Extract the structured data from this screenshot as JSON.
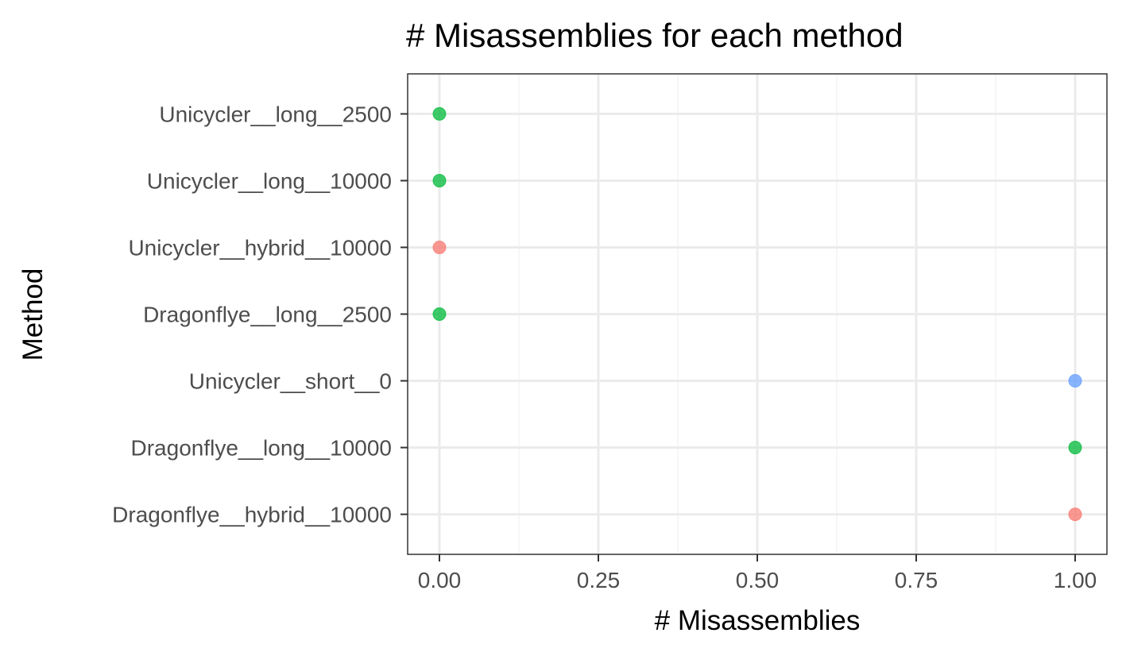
{
  "chart_data": {
    "type": "scatter",
    "title": "# Misassemblies for each method",
    "xlabel": "# Misassemblies",
    "ylabel": "Method",
    "xlim": [
      -0.05,
      1.05
    ],
    "x_ticks": [
      0.0,
      0.25,
      0.5,
      0.75,
      1.0
    ],
    "x_tick_labels": [
      "0.00",
      "0.25",
      "0.50",
      "0.75",
      "1.00"
    ],
    "categories": [
      "Unicycler__long__2500",
      "Unicycler__long__10000",
      "Unicycler__hybrid__10000",
      "Dragonflye__long__2500",
      "Unicycler__short__0",
      "Dragonflye__long__10000",
      "Dragonflye__hybrid__10000"
    ],
    "points": [
      {
        "method": "Unicycler__long__2500",
        "x": 0,
        "color": "#00BA38"
      },
      {
        "method": "Unicycler__long__10000",
        "x": 0,
        "color": "#00BA38"
      },
      {
        "method": "Unicycler__hybrid__10000",
        "x": 0,
        "color": "#F8766D"
      },
      {
        "method": "Dragonflye__long__2500",
        "x": 0,
        "color": "#00BA38"
      },
      {
        "method": "Unicycler__short__0",
        "x": 1,
        "color": "#619CFF"
      },
      {
        "method": "Dragonflye__long__10000",
        "x": 1,
        "color": "#00BA38"
      },
      {
        "method": "Dragonflye__hybrid__10000",
        "x": 1,
        "color": "#F8766D"
      }
    ],
    "grid": true,
    "legend": "none"
  },
  "colors": {
    "panel_border": "#333333",
    "grid_major": "#ebebeb",
    "grid_minor": "#f3f3f3",
    "tick_text": "#4d4d4d",
    "tick_mark": "#333333"
  }
}
